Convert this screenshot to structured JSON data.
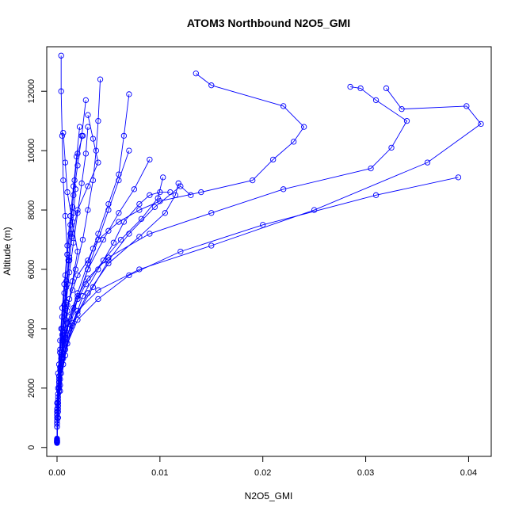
{
  "chart_data": {
    "type": "line",
    "title": "ATOM3 Northbound N2O5_GMI",
    "xlabel": "N2O5_GMI",
    "ylabel": "Altitude (m)",
    "xlim": [
      -0.001,
      0.0422
    ],
    "ylim": [
      -300,
      13500
    ],
    "x_ticks": [
      0.0,
      0.01,
      0.02,
      0.03,
      0.04
    ],
    "x_tick_labels": [
      "0.00",
      "0.01",
      "0.02",
      "0.03",
      "0.04"
    ],
    "y_ticks": [
      0,
      2000,
      4000,
      6000,
      8000,
      10000,
      12000
    ],
    "y_tick_labels": [
      "0",
      "2000",
      "4000",
      "6000",
      "8000",
      "10000",
      "12000"
    ],
    "grid": false,
    "color": "#0000ff",
    "marker": "open-circle",
    "series": [
      {
        "x": [
          0.0,
          0.0,
          0.0001,
          0.0002,
          0.0003,
          0.0005,
          0.0008,
          0.001,
          0.0015,
          0.002,
          0.003,
          0.0035,
          0.004,
          0.005,
          0.006,
          0.008,
          0.01,
          0.014,
          0.019,
          0.021,
          0.023,
          0.024,
          0.022,
          0.015,
          0.0135
        ],
        "y": [
          200,
          800,
          1500,
          2400,
          3200,
          3800,
          4300,
          4800,
          5300,
          5800,
          6300,
          6700,
          7000,
          7300,
          7600,
          8000,
          8300,
          8600,
          9000,
          9700,
          10300,
          10800,
          11500,
          12200,
          12600
        ]
      },
      {
        "x": [
          0.0,
          0.0,
          0.0001,
          0.0002,
          0.0004,
          0.0008,
          0.0012,
          0.002,
          0.003,
          0.005,
          0.009,
          0.015,
          0.022,
          0.0305,
          0.0325,
          0.034,
          0.031,
          0.0295,
          0.0285
        ],
        "y": [
          150,
          700,
          1400,
          2200,
          3000,
          3700,
          4400,
          5100,
          5700,
          6400,
          7200,
          7900,
          8700,
          9400,
          10100,
          11000,
          11700,
          12100,
          12150
        ]
      },
      {
        "x": [
          0.0,
          0.0,
          0.0002,
          0.0005,
          0.001,
          0.002,
          0.004,
          0.008,
          0.015,
          0.025,
          0.036,
          0.0412,
          0.0398,
          0.0335,
          0.032
        ],
        "y": [
          300,
          1200,
          2100,
          3000,
          3800,
          4600,
          5300,
          6000,
          6800,
          8000,
          9600,
          10900,
          11500,
          11400,
          12100
        ]
      },
      {
        "x": [
          0.0,
          0.0001,
          0.0003,
          0.0006,
          0.001,
          0.002,
          0.004,
          0.007,
          0.012,
          0.02,
          0.031,
          0.039
        ],
        "y": [
          250,
          1000,
          1900,
          2800,
          3500,
          4300,
          5000,
          5800,
          6600,
          7500,
          8500,
          9100
        ]
      },
      {
        "x": [
          0.0,
          0.0,
          0.0001,
          0.0003,
          0.0006,
          0.001,
          0.0015,
          0.002,
          0.0015,
          0.001,
          0.0008,
          0.0006
        ],
        "y": [
          180,
          900,
          1700,
          2600,
          3600,
          4600,
          5600,
          6600,
          7600,
          8600,
          9600,
          10600
        ]
      },
      {
        "x": [
          0.0,
          0.0,
          0.0002,
          0.0005,
          0.001,
          0.002,
          0.003,
          0.004,
          0.005,
          0.006,
          0.007
        ],
        "y": [
          220,
          1100,
          2000,
          3000,
          4000,
          5000,
          6000,
          7000,
          8000,
          9000,
          10000
        ]
      },
      {
        "x": [
          0.0,
          0.0001,
          0.0003,
          0.0008,
          0.0015,
          0.003,
          0.005,
          0.008,
          0.0105,
          0.0115,
          0.0118
        ],
        "y": [
          260,
          1300,
          2300,
          3300,
          4200,
          5200,
          6200,
          7100,
          7900,
          8500,
          8900
        ]
      },
      {
        "x": [
          0.0,
          0.0,
          0.0001,
          0.0002,
          0.0003,
          0.0005,
          0.0007,
          0.0009,
          0.0012,
          0.0015,
          0.002,
          0.003,
          0.004,
          0.0035,
          0.003
        ],
        "y": [
          170,
          800,
          1600,
          2400,
          3200,
          4000,
          4800,
          5600,
          6400,
          7200,
          8000,
          8800,
          9600,
          10400,
          11200
        ]
      },
      {
        "x": [
          0.0,
          0.0,
          0.0001,
          0.0004,
          0.0008,
          0.0012,
          0.0018,
          0.0025,
          0.003,
          0.0035,
          0.0038,
          0.004,
          0.0042
        ],
        "y": [
          200,
          1000,
          2000,
          3000,
          4000,
          5000,
          6000,
          7000,
          8000,
          9000,
          10000,
          11000,
          12400
        ]
      },
      {
        "x": [
          0.0,
          0.0001,
          0.0002,
          0.0004,
          0.0007,
          0.001,
          0.0008,
          0.0006,
          0.0005,
          0.0004,
          0.0004
        ],
        "y": [
          240,
          1500,
          2800,
          4000,
          5200,
          6500,
          7800,
          9000,
          10500,
          12000,
          13200
        ]
      },
      {
        "x": [
          0.0,
          0.0,
          0.0002,
          0.0005,
          0.001,
          0.002,
          0.003,
          0.004,
          0.005,
          0.006,
          0.0065,
          0.007
        ],
        "y": [
          210,
          1200,
          2200,
          3200,
          4200,
          5200,
          6200,
          7200,
          8200,
          9200,
          10500,
          11900
        ]
      },
      {
        "x": [
          0.0,
          0.0,
          0.0003,
          0.0008,
          0.0015,
          0.0025,
          0.004,
          0.0055,
          0.0065,
          0.008,
          0.009,
          0.01,
          0.011
        ],
        "y": [
          230,
          1100,
          2100,
          3100,
          4100,
          5100,
          6000,
          6900,
          7600,
          8200,
          8500,
          8600,
          8600
        ]
      },
      {
        "x": [
          0.0,
          0.0001,
          0.0002,
          0.0004,
          0.0006,
          0.0009,
          0.0012,
          0.0016,
          0.002,
          0.0024,
          0.0028,
          0.003
        ],
        "y": [
          190,
          1000,
          1900,
          2900,
          3900,
          4900,
          5900,
          6900,
          7900,
          8900,
          9900,
          10800
        ]
      },
      {
        "x": [
          0.0,
          0.0,
          0.0001,
          0.0003,
          0.0005,
          0.0008,
          0.001,
          0.0013,
          0.0016,
          0.0019,
          0.0022
        ],
        "y": [
          160,
          1300,
          2500,
          3600,
          4700,
          5800,
          6800,
          7800,
          8800,
          9800,
          10800
        ]
      },
      {
        "x": [
          0.0,
          0.0001,
          0.0004,
          0.001,
          0.002,
          0.0035,
          0.005,
          0.007,
          0.0095,
          0.012,
          0.013
        ],
        "y": [
          280,
          1400,
          2500,
          3500,
          4500,
          5400,
          6300,
          7200,
          8100,
          8800,
          8500
        ]
      },
      {
        "x": [
          0.0,
          0.0,
          0.0001,
          0.0003,
          0.0005,
          0.0007,
          0.0009,
          0.0011,
          0.0013,
          0.0015,
          0.0017,
          0.002,
          0.0025
        ],
        "y": [
          200,
          900,
          1800,
          2700,
          3600,
          4500,
          5400,
          6300,
          7200,
          8100,
          9000,
          9900,
          10500
        ]
      },
      {
        "x": [
          0.0,
          0.0,
          0.0002,
          0.0006,
          0.0012,
          0.002,
          0.003,
          0.0045,
          0.006,
          0.0075,
          0.009
        ],
        "y": [
          250,
          1100,
          2000,
          3000,
          4000,
          5000,
          6000,
          7000,
          7900,
          8700,
          9700
        ]
      },
      {
        "x": [
          0.0,
          0.0001,
          0.0002,
          0.0003,
          0.0005,
          0.0007,
          0.001,
          0.0013,
          0.0016,
          0.002,
          0.0024,
          0.0028
        ],
        "y": [
          180,
          1200,
          2200,
          3300,
          4400,
          5500,
          6500,
          7500,
          8500,
          9500,
          10500,
          11700
        ]
      },
      {
        "x": [
          0.0,
          0.0,
          0.0003,
          0.0008,
          0.0016,
          0.0028,
          0.0045,
          0.0062,
          0.0082,
          0.0098,
          0.0103
        ],
        "y": [
          220,
          1500,
          2700,
          3800,
          4700,
          5500,
          6300,
          7000,
          7700,
          8400,
          9100
        ]
      },
      {
        "x": [
          0.0,
          0.0,
          0.0001,
          0.0002,
          0.0004,
          0.0006,
          0.0008,
          0.001,
          0.0012,
          0.0014,
          0.0016,
          0.0018
        ],
        "y": [
          170,
          700,
          1500,
          2300,
          3100,
          3900,
          4700,
          5500,
          6300,
          7100,
          7900,
          8700
        ]
      }
    ]
  }
}
